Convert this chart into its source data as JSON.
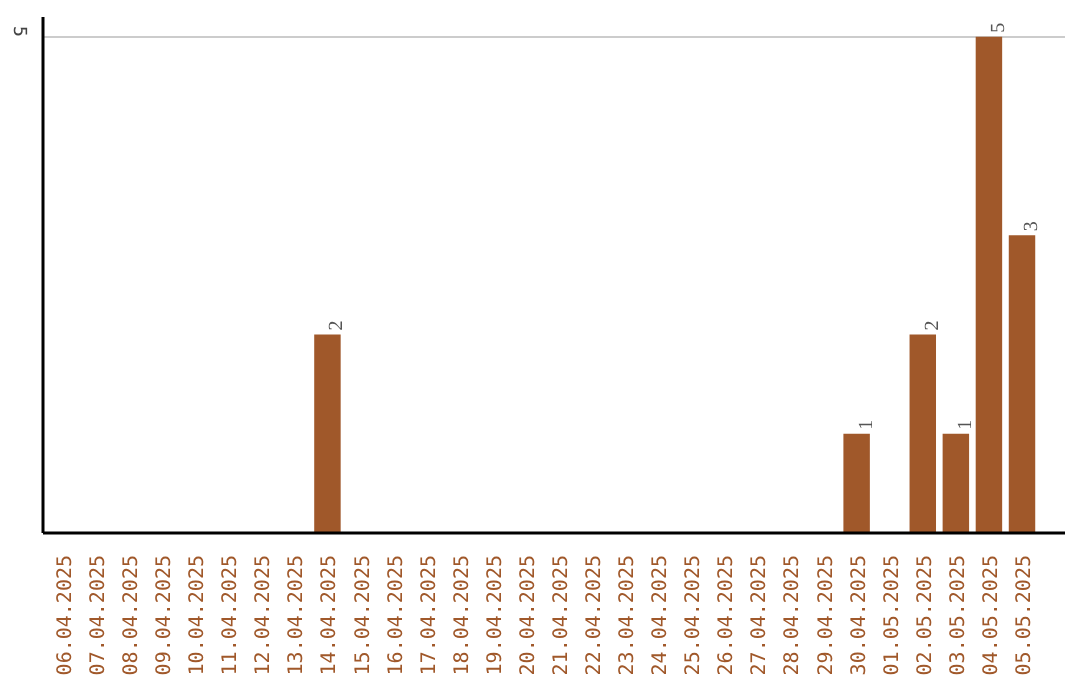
{
  "chart_data": {
    "type": "bar",
    "categories": [
      "06.04.2025",
      "07.04.2025",
      "08.04.2025",
      "09.04.2025",
      "10.04.2025",
      "11.04.2025",
      "12.04.2025",
      "13.04.2025",
      "14.04.2025",
      "15.04.2025",
      "16.04.2025",
      "17.04.2025",
      "18.04.2025",
      "19.04.2025",
      "20.04.2025",
      "21.04.2025",
      "22.04.2025",
      "23.04.2025",
      "24.04.2025",
      "25.04.2025",
      "26.04.2025",
      "27.04.2025",
      "28.04.2025",
      "29.04.2025",
      "30.04.2025",
      "01.05.2025",
      "02.05.2025",
      "03.05.2025",
      "04.05.2025",
      "05.05.2025"
    ],
    "values": [
      0,
      0,
      0,
      0,
      0,
      0,
      0,
      0,
      2,
      0,
      0,
      0,
      0,
      0,
      0,
      0,
      0,
      0,
      0,
      0,
      0,
      0,
      0,
      0,
      1,
      0,
      2,
      1,
      5,
      3
    ],
    "value_labels": [
      null,
      null,
      null,
      null,
      null,
      null,
      null,
      null,
      "2",
      null,
      null,
      null,
      null,
      null,
      null,
      null,
      null,
      null,
      null,
      null,
      null,
      null,
      null,
      null,
      "1",
      null,
      "2",
      "1",
      "5",
      "3"
    ],
    "color": "#a0582a",
    "ylim": [
      0,
      5.2
    ],
    "yticks": [
      5
    ],
    "grid": "y"
  }
}
